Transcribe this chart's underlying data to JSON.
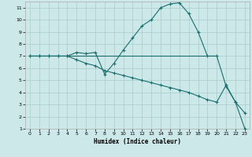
{
  "xlabel": "Humidex (Indice chaleur)",
  "background_color": "#cce8e8",
  "grid_color": "#aacccc",
  "line_color": "#1a6e6e",
  "xlim": [
    -0.5,
    23.5
  ],
  "ylim": [
    1,
    11.5
  ],
  "xticks": [
    0,
    1,
    2,
    3,
    4,
    5,
    6,
    7,
    8,
    9,
    10,
    11,
    12,
    13,
    14,
    15,
    16,
    17,
    18,
    19,
    20,
    21,
    22,
    23
  ],
  "yticks": [
    1,
    2,
    3,
    4,
    5,
    6,
    7,
    8,
    9,
    10,
    11
  ],
  "curve_x": [
    0,
    1,
    2,
    3,
    4,
    5,
    6,
    7,
    8,
    9,
    10,
    11,
    12,
    13,
    14,
    15,
    16,
    17,
    18,
    19,
    20,
    21,
    22,
    23
  ],
  "curve_y": [
    7,
    7,
    7,
    7,
    7,
    7.3,
    7.2,
    7.3,
    5.5,
    6.4,
    7.5,
    8.5,
    9.5,
    10.0,
    11.0,
    11.3,
    11.4,
    10.5,
    9.0,
    7.0,
    7.0,
    4.5,
    3.2,
    2.3
  ],
  "flat_x": [
    0,
    1,
    2,
    3,
    4,
    5,
    6,
    7,
    8,
    9,
    10,
    11,
    12,
    13,
    14,
    15,
    16,
    17,
    18,
    19,
    20
  ],
  "flat_y": [
    7,
    7,
    7,
    7,
    7,
    7,
    7,
    7,
    7,
    7,
    7,
    7,
    7,
    7,
    7,
    7,
    7,
    7,
    7,
    7,
    7
  ],
  "decline_x": [
    0,
    1,
    2,
    3,
    4,
    5,
    6,
    7,
    8,
    9,
    10,
    11,
    12,
    13,
    14,
    15,
    16,
    17,
    18,
    19,
    20,
    21,
    22,
    23
  ],
  "decline_y": [
    7,
    7,
    7,
    7,
    7,
    6.7,
    6.4,
    6.2,
    5.8,
    5.6,
    5.4,
    5.2,
    5.0,
    4.8,
    4.6,
    4.4,
    4.2,
    4.0,
    3.7,
    3.4,
    3.2,
    4.6,
    3.2,
    1.0
  ]
}
